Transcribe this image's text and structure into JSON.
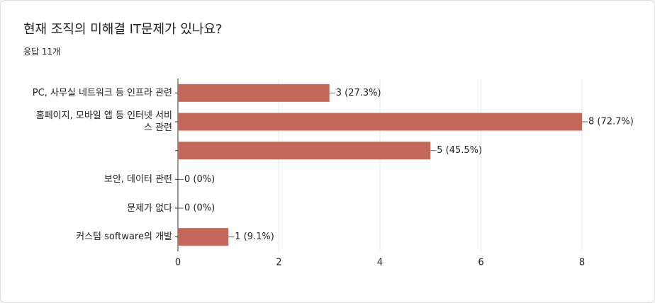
{
  "chart_data": {
    "type": "bar",
    "orientation": "horizontal",
    "title": "현재 조직의 미해결 IT문제가 있나요?",
    "subtitle": "응답 11개",
    "categories": [
      "PC, 사무실 네트워크 등 인프라 관련",
      "홈페이지, 모바일 앱 등 인터넷 서비스 관련",
      null,
      "보안, 데이터 관련",
      "문제가 없다",
      "커스텀 software의 개발"
    ],
    "values": [
      3,
      8,
      5,
      0,
      0,
      1
    ],
    "value_labels": [
      "3 (27.3%)",
      "8 (72.7%)",
      "5 (45.5%)",
      "0 (0%)",
      "0 (0%)",
      "1 (9.1%)"
    ],
    "color": "#c5675b",
    "xlim": [
      0,
      8
    ],
    "xticks": [
      0,
      2,
      4,
      6,
      8
    ],
    "grid": true
  }
}
